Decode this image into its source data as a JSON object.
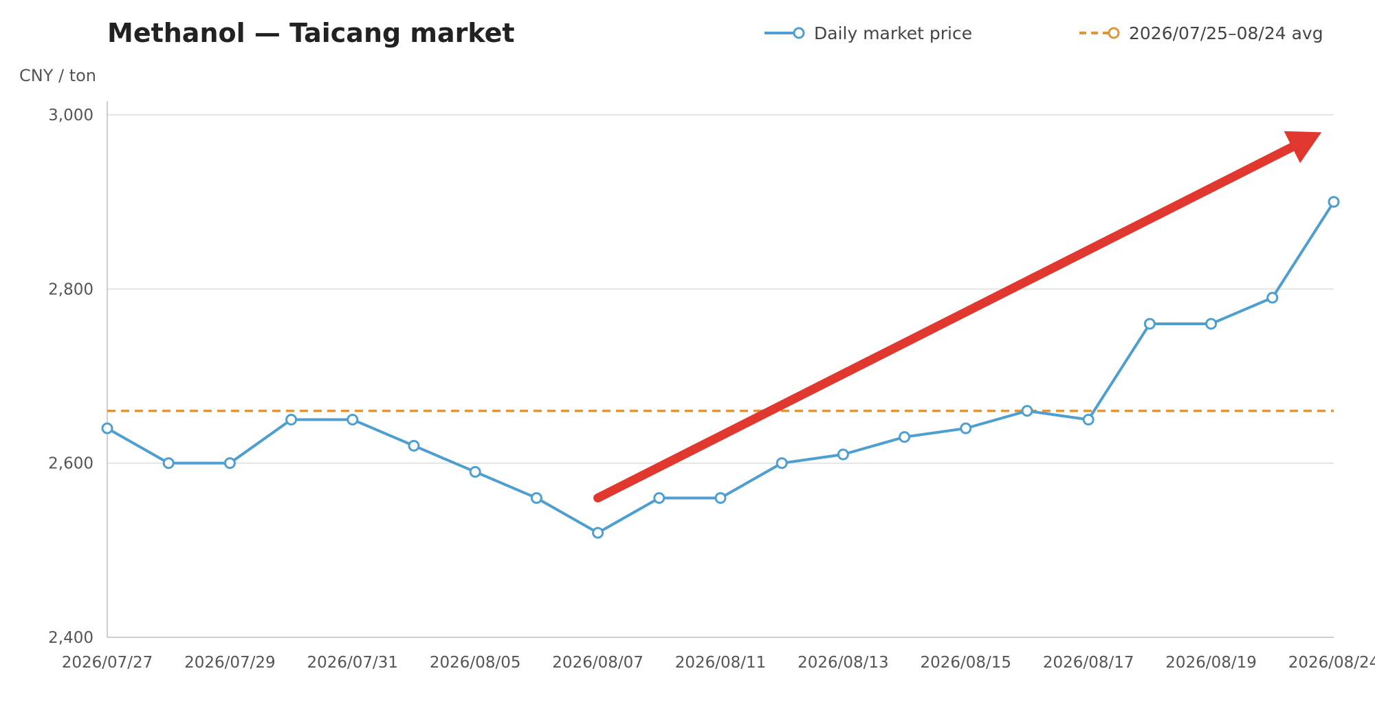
{
  "chart_data": {
    "type": "line",
    "title": "Methanol — Taicang market",
    "ylabel": "CNY / ton",
    "xlabel": "",
    "ylim": [
      2400,
      3000
    ],
    "yticks": [
      2400,
      2600,
      2800,
      3000
    ],
    "ytick_labels": [
      "2,400",
      "2,600",
      "2,800",
      "3,000"
    ],
    "grid": "horizontal",
    "legend_position": "top-right",
    "xtick_labels": [
      "2026/07/27",
      "2026/07/29",
      "2026/07/31",
      "2026/08/05",
      "2026/08/07",
      "2026/08/11",
      "2026/08/13",
      "2026/08/15",
      "2026/08/17",
      "2026/08/19",
      "2026/08/24"
    ],
    "series": [
      {
        "name": "Daily market price",
        "color": "#4e9fcf",
        "marker": "hollow-circle",
        "values": [
          2640,
          2600,
          2600,
          2650,
          2650,
          2620,
          2590,
          2560,
          2520,
          2560,
          2560,
          2600,
          2610,
          2630,
          2640,
          2660,
          2650,
          2760,
          2760,
          2790,
          2900
        ]
      },
      {
        "name": "2026/07/25–08/24 avg",
        "color": "#e0953a",
        "style": "dashed",
        "marker": "hollow-circle",
        "value": 2660
      }
    ],
    "annotation": {
      "type": "arrow",
      "color": "#e0372f",
      "from": [
        8.0,
        2560
      ],
      "to": [
        19.8,
        2980
      ]
    }
  }
}
